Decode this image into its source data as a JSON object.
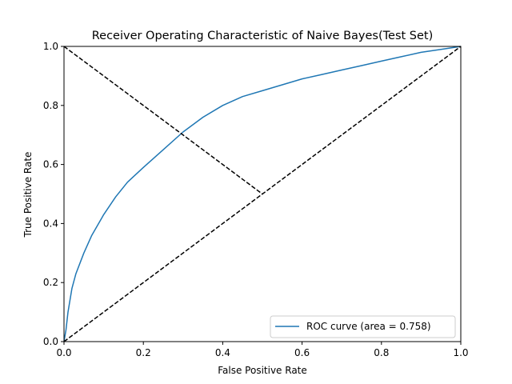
{
  "chart_data": {
    "type": "line",
    "title": "Receiver Operating Characteristic of Naive Bayes(Test Set)",
    "xlabel": "False Positive Rate",
    "ylabel": "True Positive Rate",
    "xlim": [
      0.0,
      1.0
    ],
    "ylim": [
      0.0,
      1.0
    ],
    "xticks": [
      "0.0",
      "0.2",
      "0.4",
      "0.6",
      "0.8",
      "1.0"
    ],
    "yticks": [
      "0.0",
      "0.2",
      "0.4",
      "0.6",
      "0.8",
      "1.0"
    ],
    "grid": false,
    "legend_position": "lower right",
    "series": [
      {
        "name": "ROC curve (area = 0.758)",
        "color": "#1f77b4",
        "style": "solid",
        "x": [
          0.0,
          0.005,
          0.01,
          0.02,
          0.03,
          0.05,
          0.07,
          0.1,
          0.13,
          0.16,
          0.2,
          0.25,
          0.3,
          0.35,
          0.4,
          0.45,
          0.5,
          0.55,
          0.6,
          0.65,
          0.7,
          0.75,
          0.8,
          0.85,
          0.9,
          0.95,
          1.0
        ],
        "y": [
          0.0,
          0.04,
          0.1,
          0.18,
          0.23,
          0.3,
          0.36,
          0.43,
          0.49,
          0.54,
          0.59,
          0.65,
          0.71,
          0.76,
          0.8,
          0.83,
          0.85,
          0.87,
          0.89,
          0.905,
          0.92,
          0.935,
          0.95,
          0.965,
          0.98,
          0.99,
          1.0
        ]
      },
      {
        "name": "",
        "color": "#000000",
        "style": "dashed",
        "x": [
          0.0,
          1.0
        ],
        "y": [
          0.0,
          1.0
        ]
      },
      {
        "name": "",
        "color": "#000000",
        "style": "dashed",
        "x": [
          0.0,
          0.5
        ],
        "y": [
          1.0,
          0.5
        ]
      }
    ]
  }
}
